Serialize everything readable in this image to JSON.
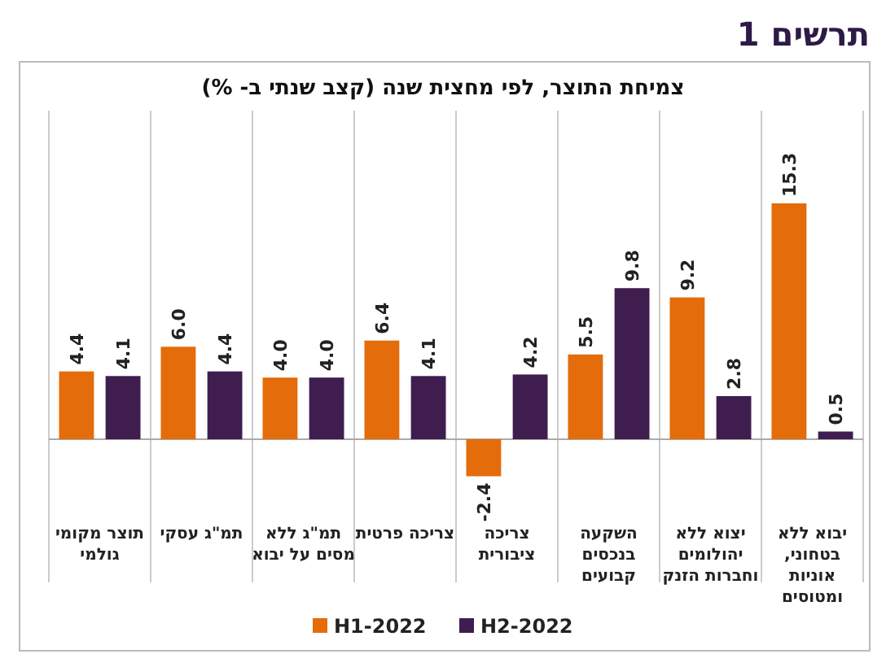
{
  "chart_data": {
    "type": "bar",
    "title": "תרשים 1",
    "subtitle": "צמיחת התוצר, לפי מחצית שנה (קצב שנתי ב- %)",
    "categories": [
      "תוצר מקומי\nגולמי",
      "תמ\"ג עסקי",
      "תמ\"ג ללא\nמסים על יבוא",
      "צריכה פרטית",
      "צריכה\nציבורית",
      "השקעה\nבנכסים\nקבועים",
      "יצוא ללא\nיהולומים\nוחברות הזנק",
      "יבוא ללא\nבטחוני,\nאוניות\nומטוסים"
    ],
    "series": [
      {
        "name": "H1-2022",
        "color": "#e46c0a",
        "values": [
          4.4,
          6.0,
          4.0,
          6.4,
          -2.4,
          5.5,
          9.2,
          15.3
        ],
        "value_labels": [
          "4.4",
          "6.0",
          "4.0",
          "6.4",
          "-2.4",
          "5.5",
          "9.2",
          "15.3"
        ]
      },
      {
        "name": "H2-2022",
        "color": "#3f1d4f",
        "values": [
          4.1,
          4.4,
          4.0,
          4.1,
          4.2,
          9.8,
          2.8,
          0.5
        ],
        "value_labels": [
          "4.1",
          "4.4",
          "4.0",
          "4.1",
          "4.2",
          "9.8",
          "2.8",
          "0.5"
        ]
      }
    ],
    "legend": "bottom"
  }
}
